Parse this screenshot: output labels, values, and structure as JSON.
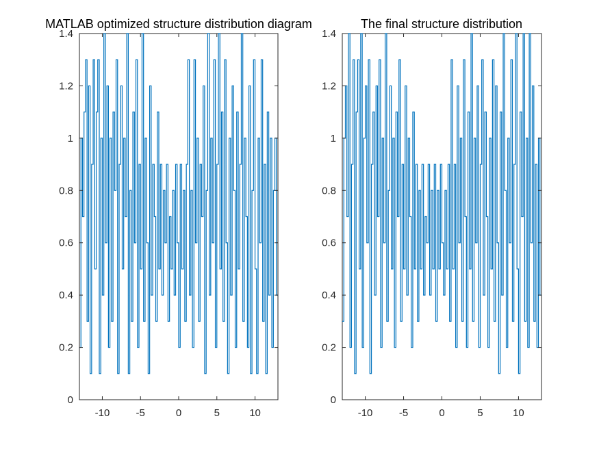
{
  "chart_data": [
    {
      "type": "line",
      "title": "MATLAB optimized structure distribution diagram",
      "xlabel": "",
      "ylabel": "",
      "xlim": [
        -13,
        13
      ],
      "ylim": [
        0,
        1.4
      ],
      "xticks": [
        -10,
        -5,
        0,
        5,
        10
      ],
      "yticks": [
        0,
        0.2,
        0.4,
        0.6,
        0.8,
        1,
        1.2,
        1.4
      ],
      "xtick_labels": [
        "-10",
        "-5",
        "0",
        "5",
        "10"
      ],
      "ytick_labels": [
        "0",
        "0.2",
        "0.4",
        "0.6",
        "0.8",
        "1",
        "1.2",
        "1.4"
      ],
      "grid": false,
      "color": "#0072BD",
      "series": [
        {
          "x": [
            -13,
            -12.8,
            -12.6,
            -12.4,
            -12.2,
            -12,
            -11.8,
            -11.6,
            -11.4,
            -11.2,
            -11,
            -10.8,
            -10.6,
            -10.4,
            -10.2,
            -10,
            -9.8,
            -9.6,
            -9.4,
            -9.2,
            -9,
            -8.8,
            -8.6,
            -8.4,
            -8.2,
            -8,
            -7.8,
            -7.6,
            -7.4,
            -7.2,
            -7,
            -6.8,
            -6.6,
            -6.4,
            -6.2,
            -6,
            -5.8,
            -5.6,
            -5.4,
            -5.2,
            -5,
            -4.8,
            -4.6,
            -4.4,
            -4.2,
            -4,
            -3.8,
            -3.6,
            -3.4,
            -3.2,
            -3,
            -2.8,
            -2.6,
            -2.4,
            -2.2,
            -2,
            -1.8,
            -1.6,
            -1.4,
            -1.2,
            -1,
            -0.8,
            -0.6,
            -0.4,
            -0.2,
            0,
            0.2,
            0.4,
            0.6,
            0.8,
            1,
            1.2,
            1.4,
            1.6,
            1.8,
            2,
            2.2,
            2.4,
            2.6,
            2.8,
            3,
            3.2,
            3.4,
            3.6,
            3.8,
            4,
            4.2,
            4.4,
            4.6,
            4.8,
            5,
            5.2,
            5.4,
            5.6,
            5.8,
            6,
            6.2,
            6.4,
            6.6,
            6.8,
            7,
            7.2,
            7.4,
            7.6,
            7.8,
            8,
            8.2,
            8.4,
            8.6,
            8.8,
            9,
            9.2,
            9.4,
            9.6,
            9.8,
            10,
            10.2,
            10.4,
            10.6,
            10.8,
            11,
            11.2,
            11.4,
            11.6,
            11.8,
            12,
            12.2,
            12.4,
            12.6,
            12.8
          ],
          "y": [
            0.2,
            1.0,
            0.7,
            1.1,
            1.3,
            0.3,
            1.2,
            0.1,
            0.9,
            1.3,
            0.5,
            1.1,
            1.3,
            0.1,
            1.0,
            0.4,
            1.4,
            0.6,
            1.2,
            0.2,
            1.0,
            0.3,
            1.1,
            0.8,
            1.3,
            0.1,
            0.9,
            1.2,
            0.5,
            1.0,
            0.7,
            1.4,
            0.1,
            0.8,
            0.3,
            1.1,
            0.6,
            1.3,
            0.2,
            0.9,
            0.5,
            1.4,
            0.3,
            1.0,
            0.6,
            0.1,
            1.2,
            0.4,
            0.9,
            0.7,
            0.3,
            1.1,
            0.5,
            0.9,
            0.4,
            0.8,
            0.6,
            0.9,
            0.3,
            0.7,
            0.5,
            0.8,
            0.4,
            0.9,
            0.6,
            0.2,
            0.9,
            0.5,
            0.8,
            0.3,
            0.9,
            1.3,
            0.4,
            0.8,
            0.2,
            1.3,
            0.6,
            1.0,
            0.3,
            0.9,
            0.7,
            1.2,
            0.1,
            0.8,
            1.4,
            0.4,
            1.0,
            0.6,
            1.3,
            0.2,
            0.9,
            1.4,
            0.5,
            1.1,
            0.3,
            1.3,
            0.6,
            0.1,
            1.0,
            0.4,
            1.2,
            0.8,
            0.2,
            1.1,
            0.5,
            0.9,
            1.4,
            0.3,
            1.0,
            0.7,
            0.2,
            1.2,
            0.1,
            0.8,
            1.3,
            0.5,
            0.1,
            1.0,
            0.6,
            1.3,
            0.3,
            0.9,
            0.1,
            1.1,
            0.4,
            1.0,
            0.2,
            0.8,
            1.0,
            0.4
          ]
        }
      ]
    },
    {
      "type": "line",
      "title": "The final structure distribution",
      "xlabel": "",
      "ylabel": "",
      "xlim": [
        -13,
        13
      ],
      "ylim": [
        0,
        1.4
      ],
      "xticks": [
        -10,
        -5,
        0,
        5,
        10
      ],
      "yticks": [
        0,
        0.2,
        0.4,
        0.6,
        0.8,
        1,
        1.2,
        1.4
      ],
      "xtick_labels": [
        "-10",
        "-5",
        "0",
        "5",
        "10"
      ],
      "ytick_labels": [
        "0",
        "0.2",
        "0.4",
        "0.6",
        "0.8",
        "1",
        "1.2",
        "1.4"
      ],
      "grid": false,
      "color": "#0072BD",
      "series": [
        {
          "x": [
            -13,
            -12.8,
            -12.6,
            -12.4,
            -12.2,
            -12,
            -11.8,
            -11.6,
            -11.4,
            -11.2,
            -11,
            -10.8,
            -10.6,
            -10.4,
            -10.2,
            -10,
            -9.8,
            -9.6,
            -9.4,
            -9.2,
            -9,
            -8.8,
            -8.6,
            -8.4,
            -8.2,
            -8,
            -7.8,
            -7.6,
            -7.4,
            -7.2,
            -7,
            -6.8,
            -6.6,
            -6.4,
            -6.2,
            -6,
            -5.8,
            -5.6,
            -5.4,
            -5.2,
            -5,
            -4.8,
            -4.6,
            -4.4,
            -4.2,
            -4,
            -3.8,
            -3.6,
            -3.4,
            -3.2,
            -3,
            -2.8,
            -2.6,
            -2.4,
            -2.2,
            -2,
            -1.8,
            -1.6,
            -1.4,
            -1.2,
            -1,
            -0.8,
            -0.6,
            -0.4,
            -0.2,
            0,
            0.2,
            0.4,
            0.6,
            0.8,
            1,
            1.2,
            1.4,
            1.6,
            1.8,
            2,
            2.2,
            2.4,
            2.6,
            2.8,
            3,
            3.2,
            3.4,
            3.6,
            3.8,
            4,
            4.2,
            4.4,
            4.6,
            4.8,
            5,
            5.2,
            5.4,
            5.6,
            5.8,
            6,
            6.2,
            6.4,
            6.6,
            6.8,
            7,
            7.2,
            7.4,
            7.6,
            7.8,
            8,
            8.2,
            8.4,
            8.6,
            8.8,
            9,
            9.2,
            9.4,
            9.6,
            9.8,
            10,
            10.2,
            10.4,
            10.6,
            10.8,
            11,
            11.2,
            11.4,
            11.6,
            11.8,
            12,
            12.2,
            12.4,
            12.6,
            12.8
          ],
          "y": [
            0.3,
            1.0,
            1.2,
            0.7,
            1.4,
            0.2,
            0.9,
            1.3,
            0.1,
            1.1,
            1.3,
            0.5,
            1.4,
            0.2,
            1.0,
            1.2,
            0.6,
            1.3,
            0.1,
            0.9,
            1.1,
            0.4,
            1.2,
            0.7,
            1.3,
            0.2,
            1.0,
            0.6,
            1.4,
            0.3,
            0.8,
            1.2,
            0.5,
            1.0,
            0.2,
            1.1,
            0.7,
            1.3,
            0.3,
            0.9,
            0.5,
            1.2,
            0.4,
            1.0,
            0.7,
            0.2,
            1.1,
            0.5,
            0.9,
            0.3,
            0.8,
            0.5,
            0.9,
            0.4,
            0.7,
            0.6,
            0.9,
            0.4,
            0.8,
            0.5,
            0.9,
            0.3,
            0.8,
            0.5,
            0.9,
            0.6,
            0.4,
            0.8,
            0.5,
            0.9,
            0.3,
            1.3,
            0.5,
            0.9,
            0.2,
            1.2,
            0.6,
            1.0,
            0.3,
            1.3,
            0.7,
            0.2,
            1.1,
            0.5,
            1.4,
            0.3,
            1.0,
            0.6,
            1.2,
            0.2,
            0.9,
            1.3,
            0.4,
            1.1,
            0.7,
            0.2,
            1.0,
            0.5,
            1.3,
            0.3,
            1.2,
            0.6,
            0.1,
            1.1,
            0.4,
            1.4,
            0.8,
            0.2,
            1.0,
            0.6,
            1.3,
            0.3,
            0.9,
            1.4,
            0.5,
            0.1,
            1.1,
            0.7,
            1.4,
            0.3,
            1.0,
            0.2,
            1.4,
            0.6,
            1.2,
            0.3,
            0.9,
            0.2,
            1.0,
            0.4
          ]
        }
      ]
    }
  ]
}
